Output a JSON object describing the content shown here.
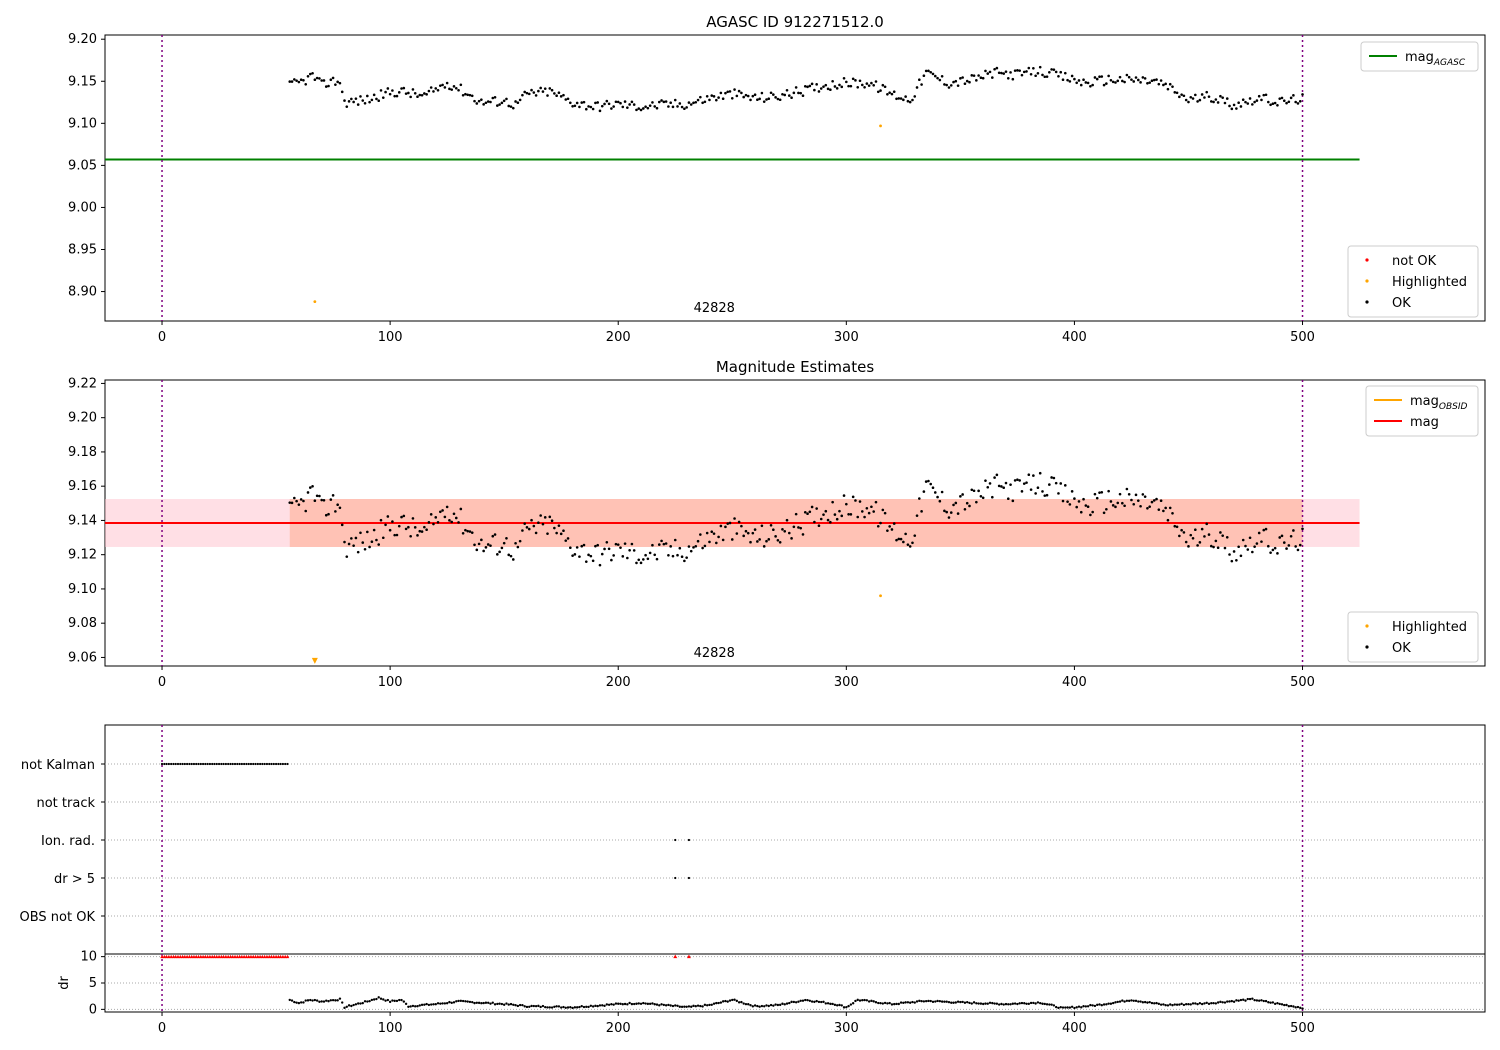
{
  "figure_title": "",
  "chart_data": [
    {
      "type": "scatter",
      "panel": "agasc",
      "title": "AGASC ID 912271512.0",
      "xlabel": "",
      "ylabel": "",
      "xlim": [
        -25,
        580
      ],
      "ylim": [
        8.865,
        9.205
      ],
      "xticks": [
        0,
        100,
        200,
        300,
        400,
        500
      ],
      "yticks": [
        8.9,
        8.95,
        9.0,
        9.05,
        9.1,
        9.15,
        9.2
      ],
      "ytick_labels": [
        "8.90",
        "8.95",
        "9.00",
        "9.05",
        "9.10",
        "9.15",
        "9.20"
      ],
      "annotation": "42828",
      "annotation_x": 250,
      "vlines": [
        0,
        500
      ],
      "hline": {
        "name": "mag",
        "subscript": "AGASC",
        "y": 9.057,
        "x_range": [
          -25,
          525
        ],
        "color": "#008000"
      },
      "legend_lines": [
        {
          "label": "mag",
          "sub": "AGASC",
          "color": "#008000"
        }
      ],
      "legend_points": [
        {
          "label": "not OK",
          "color": "#ff0000"
        },
        {
          "label": "Highlighted",
          "color": "#ffa500"
        },
        {
          "label": "OK",
          "color": "#000000"
        }
      ],
      "highlighted_points": [
        [
          67,
          8.888
        ],
        [
          315,
          9.097
        ]
      ],
      "ok_series": {
        "x_start": 56,
        "x_end": 500,
        "step": 1,
        "anchors": [
          [
            56,
            9.145
          ],
          [
            62,
            9.15
          ],
          [
            66,
            9.157
          ],
          [
            70,
            9.145
          ],
          [
            74,
            9.15
          ],
          [
            78,
            9.15
          ],
          [
            80,
            9.125
          ],
          [
            90,
            9.128
          ],
          [
            100,
            9.137
          ],
          [
            105,
            9.138
          ],
          [
            115,
            9.132
          ],
          [
            125,
            9.148
          ],
          [
            130,
            9.142
          ],
          [
            140,
            9.125
          ],
          [
            150,
            9.127
          ],
          [
            155,
            9.122
          ],
          [
            160,
            9.135
          ],
          [
            170,
            9.138
          ],
          [
            180,
            9.125
          ],
          [
            190,
            9.12
          ],
          [
            200,
            9.123
          ],
          [
            210,
            9.12
          ],
          [
            220,
            9.122
          ],
          [
            230,
            9.123
          ],
          [
            240,
            9.13
          ],
          [
            250,
            9.135
          ],
          [
            260,
            9.13
          ],
          [
            270,
            9.132
          ],
          [
            280,
            9.138
          ],
          [
            290,
            9.145
          ],
          [
            300,
            9.148
          ],
          [
            310,
            9.148
          ],
          [
            320,
            9.135
          ],
          [
            328,
            9.128
          ],
          [
            335,
            9.16
          ],
          [
            345,
            9.148
          ],
          [
            355,
            9.152
          ],
          [
            365,
            9.16
          ],
          [
            375,
            9.158
          ],
          [
            385,
            9.162
          ],
          [
            395,
            9.155
          ],
          [
            405,
            9.148
          ],
          [
            415,
            9.152
          ],
          [
            425,
            9.152
          ],
          [
            435,
            9.15
          ],
          [
            440,
            9.145
          ],
          [
            450,
            9.128
          ],
          [
            460,
            9.132
          ],
          [
            470,
            9.122
          ],
          [
            480,
            9.13
          ],
          [
            490,
            9.125
          ],
          [
            500,
            9.13
          ]
        ],
        "jitter": 0.006
      }
    },
    {
      "type": "scatter",
      "panel": "estimates",
      "title": "Magnitude Estimates",
      "xlabel": "",
      "ylabel": "",
      "xlim": [
        -25,
        580
      ],
      "ylim": [
        9.055,
        9.222
      ],
      "xticks": [
        0,
        100,
        200,
        300,
        400,
        500
      ],
      "yticks": [
        9.06,
        9.08,
        9.1,
        9.12,
        9.14,
        9.16,
        9.18,
        9.2,
        9.22
      ],
      "ytick_labels": [
        "9.06",
        "9.08",
        "9.10",
        "9.12",
        "9.14",
        "9.16",
        "9.18",
        "9.20",
        "9.22"
      ],
      "annotation": "42828",
      "annotation_x": 250,
      "vlines": [
        0,
        500
      ],
      "mag_line": {
        "y": 9.1385,
        "x_range": [
          -25,
          525
        ],
        "color": "#ff0000"
      },
      "band_outer": {
        "y_range": [
          9.1245,
          9.1525
        ],
        "x_range": [
          -25,
          525
        ],
        "color": "#ffc0cb"
      },
      "band_inner": {
        "y_range": [
          9.1245,
          9.1525
        ],
        "x_range": [
          56,
          500
        ],
        "color": "#ffa07a"
      },
      "legend_lines": [
        {
          "label": "mag",
          "sub": "OBSID",
          "color": "#ffa500"
        },
        {
          "label": "mag",
          "sub": "",
          "color": "#ff0000"
        }
      ],
      "legend_points": [
        {
          "label": "Highlighted",
          "color": "#ffa500"
        },
        {
          "label": "OK",
          "color": "#000000"
        }
      ],
      "highlighted_points": [
        [
          315,
          9.096
        ]
      ],
      "clipped_marker": {
        "x": 67,
        "y": 9.058
      },
      "ok_series": {
        "x_start": 56,
        "x_end": 500,
        "step": 1,
        "anchors": [
          [
            56,
            9.145
          ],
          [
            62,
            9.15
          ],
          [
            66,
            9.157
          ],
          [
            70,
            9.145
          ],
          [
            74,
            9.15
          ],
          [
            78,
            9.15
          ],
          [
            80,
            9.125
          ],
          [
            90,
            9.128
          ],
          [
            100,
            9.137
          ],
          [
            105,
            9.138
          ],
          [
            115,
            9.132
          ],
          [
            125,
            9.148
          ],
          [
            130,
            9.142
          ],
          [
            140,
            9.125
          ],
          [
            150,
            9.127
          ],
          [
            155,
            9.122
          ],
          [
            160,
            9.135
          ],
          [
            170,
            9.138
          ],
          [
            180,
            9.125
          ],
          [
            190,
            9.12
          ],
          [
            200,
            9.123
          ],
          [
            210,
            9.12
          ],
          [
            220,
            9.122
          ],
          [
            230,
            9.123
          ],
          [
            240,
            9.13
          ],
          [
            250,
            9.135
          ],
          [
            260,
            9.13
          ],
          [
            270,
            9.132
          ],
          [
            280,
            9.138
          ],
          [
            290,
            9.145
          ],
          [
            300,
            9.148
          ],
          [
            310,
            9.148
          ],
          [
            320,
            9.135
          ],
          [
            328,
            9.128
          ],
          [
            335,
            9.16
          ],
          [
            345,
            9.148
          ],
          [
            355,
            9.152
          ],
          [
            365,
            9.16
          ],
          [
            375,
            9.158
          ],
          [
            385,
            9.162
          ],
          [
            395,
            9.155
          ],
          [
            405,
            9.148
          ],
          [
            415,
            9.152
          ],
          [
            425,
            9.152
          ],
          [
            435,
            9.15
          ],
          [
            440,
            9.145
          ],
          [
            450,
            9.128
          ],
          [
            460,
            9.132
          ],
          [
            470,
            9.122
          ],
          [
            480,
            9.13
          ],
          [
            490,
            9.125
          ],
          [
            500,
            9.13
          ]
        ],
        "jitter": 0.007
      }
    },
    {
      "type": "scatter",
      "panel": "flags",
      "title": "",
      "xlabel": "",
      "ylabel": "",
      "xlim": [
        -25,
        580
      ],
      "vlines": [
        0,
        500
      ],
      "categories": [
        "not Kalman",
        "not track",
        "Ion. rad.",
        "dr > 5",
        "OBS not OK"
      ],
      "flag_points": [
        {
          "category": "not Kalman",
          "x_start": 0,
          "x_end": 55,
          "step": 1
        },
        {
          "category": "Ion. rad.",
          "x": [
            225,
            231
          ]
        },
        {
          "category": "dr > 5",
          "x": [
            225,
            231
          ]
        }
      ]
    },
    {
      "type": "scatter",
      "panel": "dr",
      "title": "",
      "xlabel": "",
      "ylabel": "dr",
      "xlim": [
        -25,
        580
      ],
      "ylim": [
        -0.5,
        10.5
      ],
      "xticks": [
        0,
        100,
        200,
        300,
        400,
        500
      ],
      "yticks": [
        0,
        5,
        10
      ],
      "ytick_labels": [
        "0",
        "5",
        "10"
      ],
      "vlines": [
        0,
        500
      ],
      "clipped": {
        "y": 10,
        "x_start": 0,
        "x_end": 55,
        "extra_x": [
          225,
          231
        ],
        "color": "#ff0000"
      },
      "dr_series": {
        "x_start": 56,
        "x_end": 500,
        "step": 1,
        "anchors": [
          [
            56,
            1.8
          ],
          [
            60,
            1.2
          ],
          [
            65,
            1.8
          ],
          [
            70,
            1.5
          ],
          [
            78,
            1.9
          ],
          [
            80,
            0.4
          ],
          [
            90,
            1.5
          ],
          [
            95,
            2.2
          ],
          [
            100,
            1.5
          ],
          [
            105,
            1.8
          ],
          [
            108,
            0.6
          ],
          [
            120,
            1.0
          ],
          [
            130,
            1.5
          ],
          [
            150,
            1.0
          ],
          [
            160,
            0.6
          ],
          [
            180,
            0.4
          ],
          [
            200,
            1.0
          ],
          [
            210,
            1.2
          ],
          [
            220,
            0.8
          ],
          [
            230,
            0.4
          ],
          [
            240,
            0.8
          ],
          [
            250,
            1.8
          ],
          [
            260,
            0.6
          ],
          [
            270,
            0.8
          ],
          [
            282,
            1.8
          ],
          [
            295,
            1.0
          ],
          [
            300,
            0.4
          ],
          [
            305,
            1.8
          ],
          [
            320,
            1.0
          ],
          [
            335,
            1.6
          ],
          [
            350,
            1.3
          ],
          [
            370,
            1.0
          ],
          [
            385,
            1.3
          ],
          [
            395,
            0.2
          ],
          [
            410,
            0.8
          ],
          [
            425,
            1.8
          ],
          [
            440,
            0.8
          ],
          [
            460,
            1.2
          ],
          [
            478,
            1.9
          ],
          [
            490,
            1.0
          ],
          [
            500,
            0.3
          ]
        ],
        "jitter": 0.15
      }
    }
  ]
}
